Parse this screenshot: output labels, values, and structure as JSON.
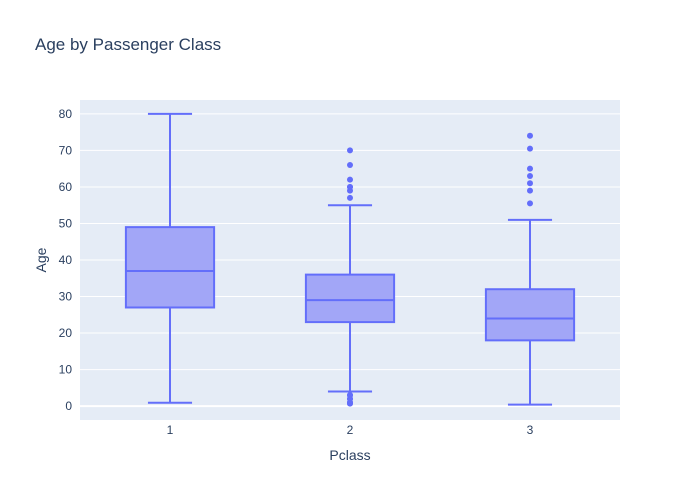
{
  "chart_data": {
    "type": "box",
    "title": "Age by Passenger Class",
    "xlabel": "Pclass",
    "ylabel": "Age",
    "categories": [
      "1",
      "2",
      "3"
    ],
    "ylim": [
      -3.8,
      83.8
    ],
    "yticks": [
      0,
      10,
      20,
      30,
      40,
      50,
      60,
      70,
      80
    ],
    "grid": true,
    "colors": {
      "plot_bg": "#e5ecf6",
      "box_fill": "#a2a6f7",
      "box_line": "#636efa",
      "grid": "#ffffff",
      "text": "#2a3f5f"
    },
    "boxes": [
      {
        "category": "1",
        "whisker_low": 0.92,
        "q1": 27,
        "median": 37,
        "q3": 49,
        "whisker_high": 80,
        "outliers": []
      },
      {
        "category": "2",
        "whisker_low": 4,
        "q1": 23,
        "median": 29,
        "q3": 36,
        "whisker_high": 55,
        "outliers": [
          0.67,
          0.83,
          1,
          1,
          2,
          2,
          3,
          3,
          57,
          59,
          60,
          60,
          62,
          66,
          70
        ]
      },
      {
        "category": "3",
        "whisker_low": 0.42,
        "q1": 18,
        "median": 24,
        "q3": 32,
        "whisker_high": 51,
        "outliers": [
          55.5,
          59,
          61,
          63,
          65,
          70.5,
          74
        ]
      }
    ]
  }
}
